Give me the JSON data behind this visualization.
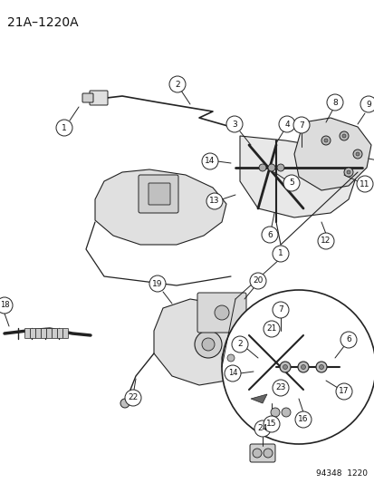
{
  "title_label": "21A–1220A",
  "footer_label": "94348  1220",
  "background_color": "#ffffff",
  "line_color": "#222222",
  "text_color": "#111111",
  "fig_width": 4.14,
  "fig_height": 5.33,
  "dpi": 100,
  "title_fontsize": 10,
  "footer_fontsize": 6.5,
  "label_fontsize": 6.5
}
